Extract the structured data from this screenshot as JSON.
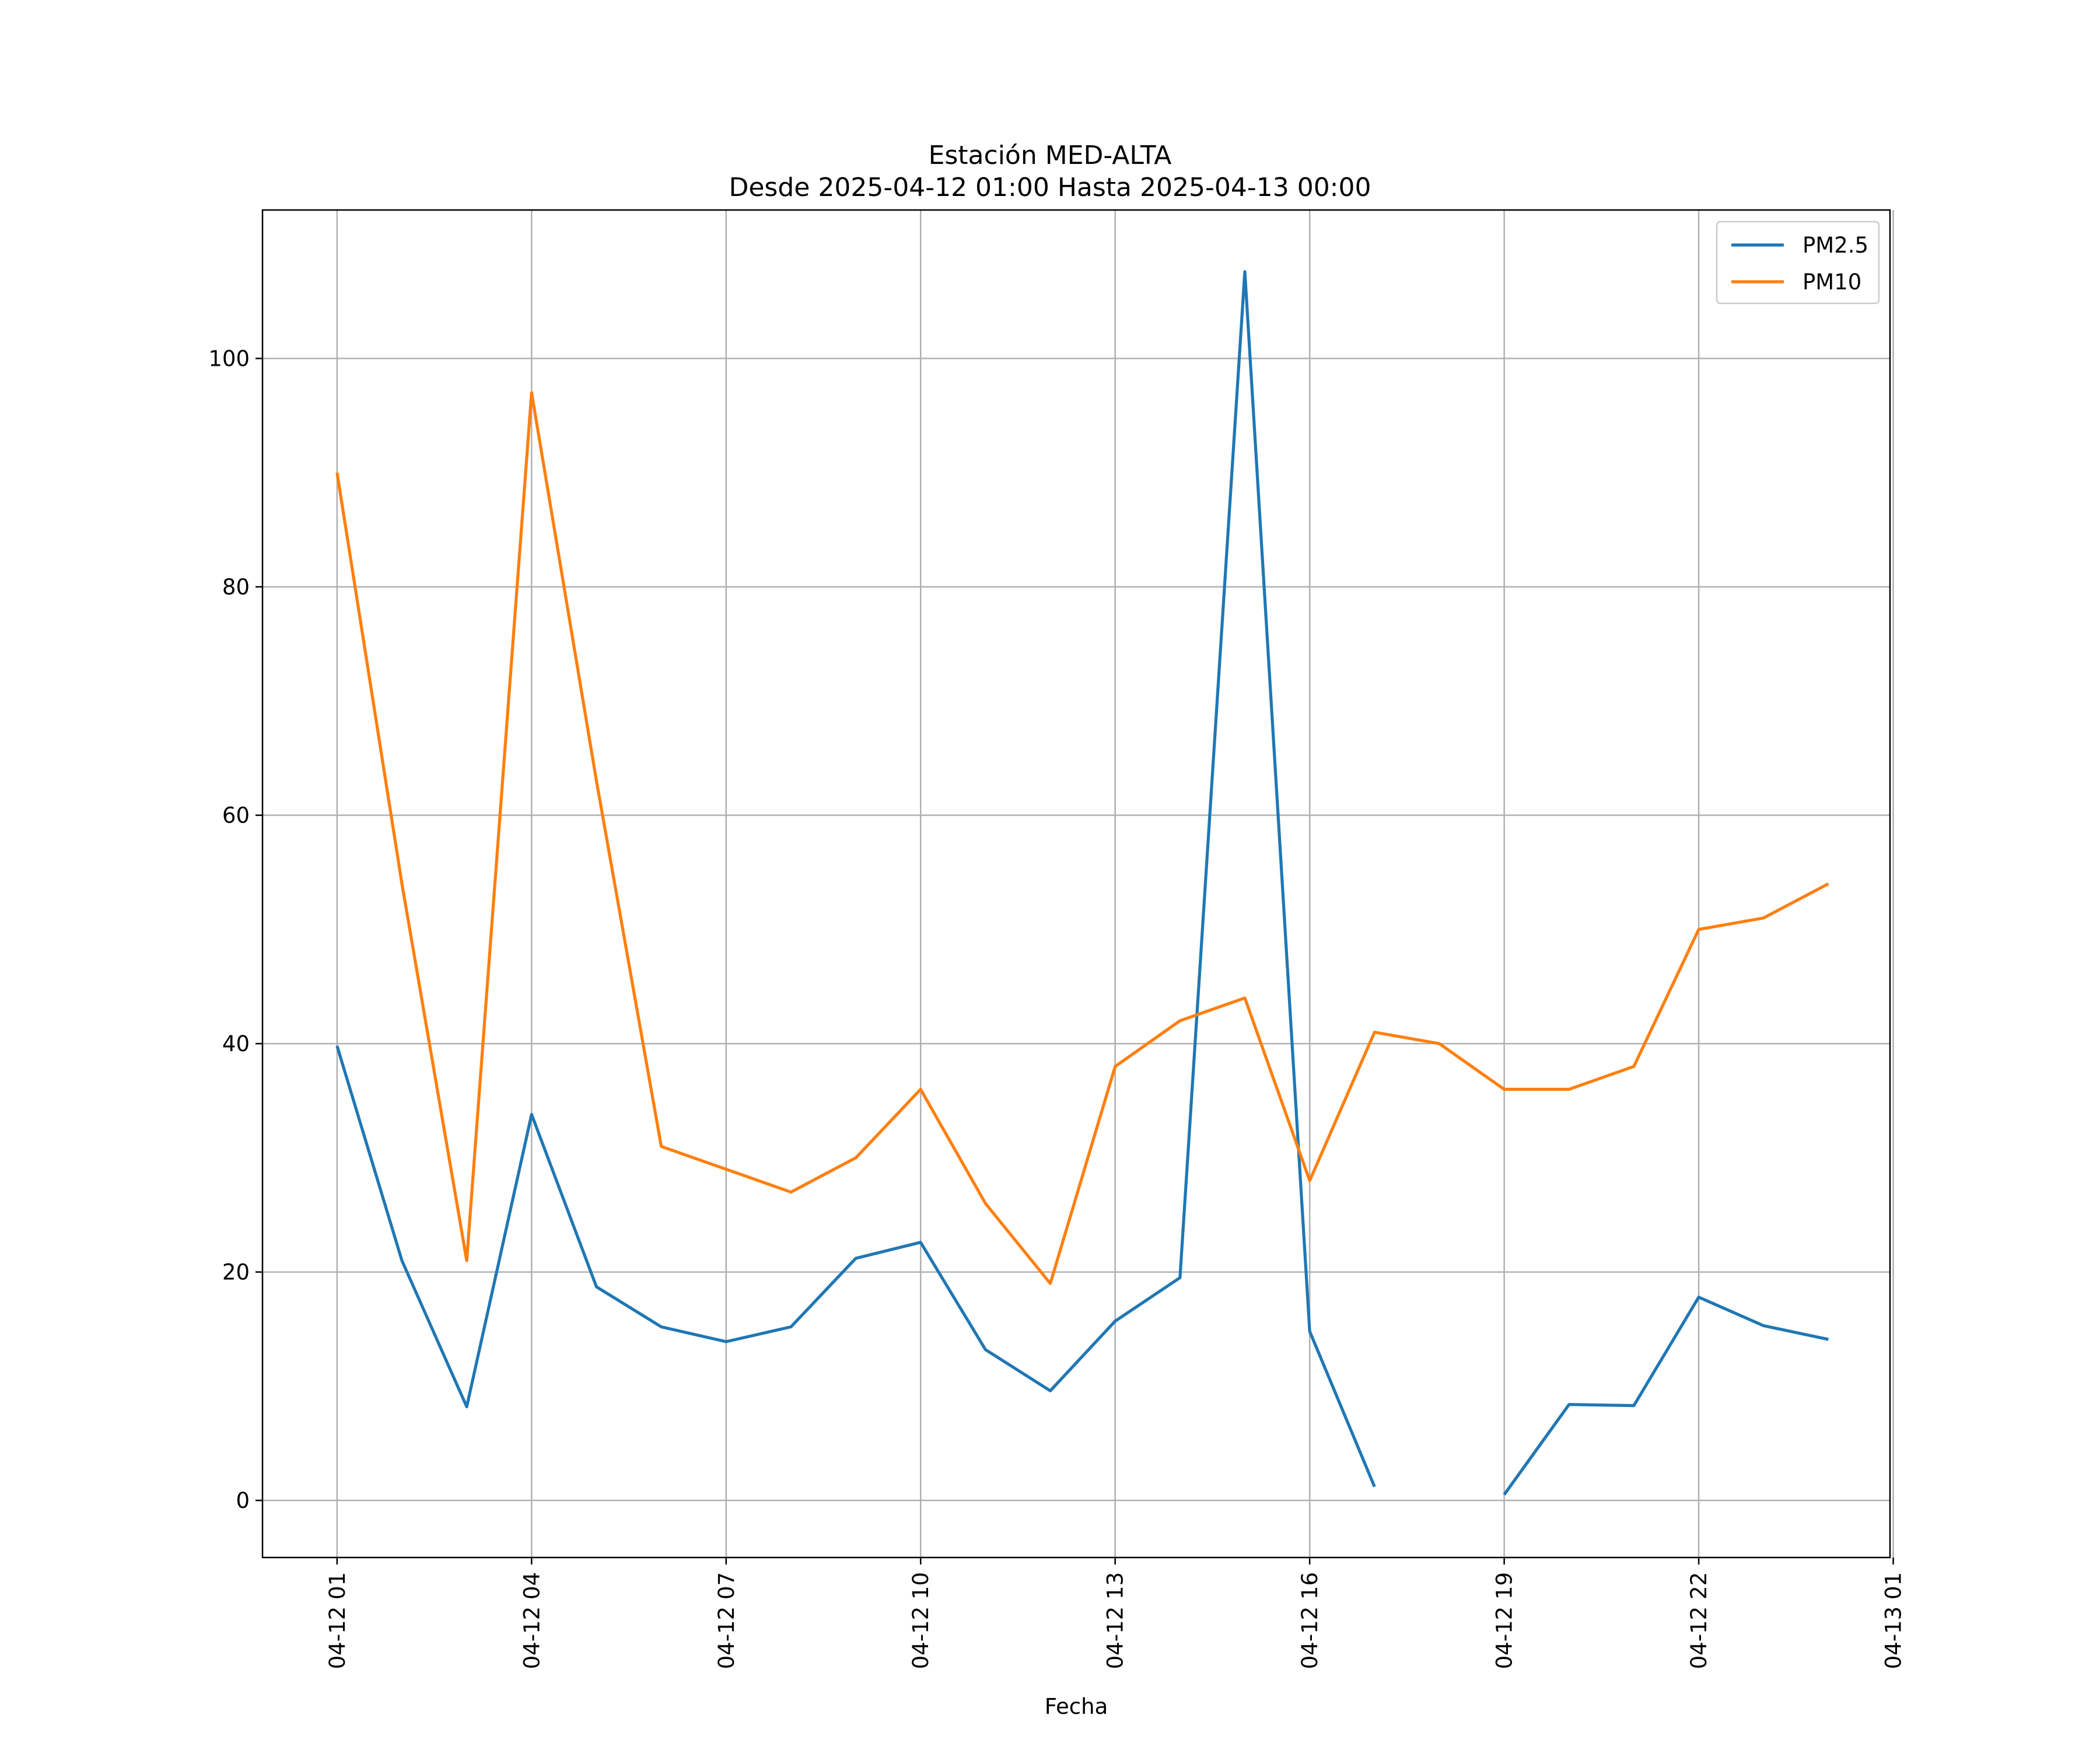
{
  "chart_data": {
    "type": "line",
    "title": "Estación MED-ALTA",
    "subtitle": "Desde 2025-04-12 01:00 Hasta 2025-04-13 00:00",
    "xlabel": "Fecha",
    "ylabel": "",
    "x_start": "2025-04-12 01:00",
    "x_range": [
      "2025-04-12 00:00",
      "2025-04-13 01:00"
    ],
    "ylim": [
      -5,
      113
    ],
    "grid": true,
    "legend_position": "upper right",
    "x_tick_labels": [
      "04-12 01",
      "04-12 04",
      "04-12 07",
      "04-12 10",
      "04-12 13",
      "04-12 16",
      "04-12 19",
      "04-12 22",
      "04-13 01"
    ],
    "y_ticks": [
      0,
      20,
      40,
      60,
      80,
      100
    ],
    "x": [
      "2025-04-12 01:00",
      "2025-04-12 02:00",
      "2025-04-12 03:00",
      "2025-04-12 04:00",
      "2025-04-12 05:00",
      "2025-04-12 06:00",
      "2025-04-12 07:00",
      "2025-04-12 08:00",
      "2025-04-12 09:00",
      "2025-04-12 10:00",
      "2025-04-12 11:00",
      "2025-04-12 12:00",
      "2025-04-12 13:00",
      "2025-04-12 14:00",
      "2025-04-12 15:00",
      "2025-04-12 16:00",
      "2025-04-12 17:00",
      "2025-04-12 18:00",
      "2025-04-12 19:00",
      "2025-04-12 20:00",
      "2025-04-12 21:00",
      "2025-04-12 22:00",
      "2025-04-12 23:00",
      "2025-04-13 00:00"
    ],
    "series": [
      {
        "name": "PM2.5",
        "color": "#1f77b4",
        "values": [
          39.8,
          21.0,
          8.2,
          33.8,
          18.7,
          15.2,
          13.9,
          15.2,
          21.2,
          22.6,
          13.2,
          9.6,
          15.7,
          19.5,
          107.6,
          14.8,
          1.2,
          null,
          0.5,
          8.4,
          8.3,
          17.8,
          15.3,
          14.1
        ]
      },
      {
        "name": "PM10",
        "color": "#ff7f0e",
        "values": [
          90.0,
          54.0,
          21.0,
          97.0,
          63.0,
          31.0,
          29.0,
          27.0,
          30.0,
          36.0,
          26.0,
          19.0,
          38.0,
          42.0,
          44.0,
          28.0,
          41.0,
          40.0,
          36.0,
          36.0,
          38.0,
          50.0,
          51.0,
          54.0
        ]
      }
    ]
  }
}
